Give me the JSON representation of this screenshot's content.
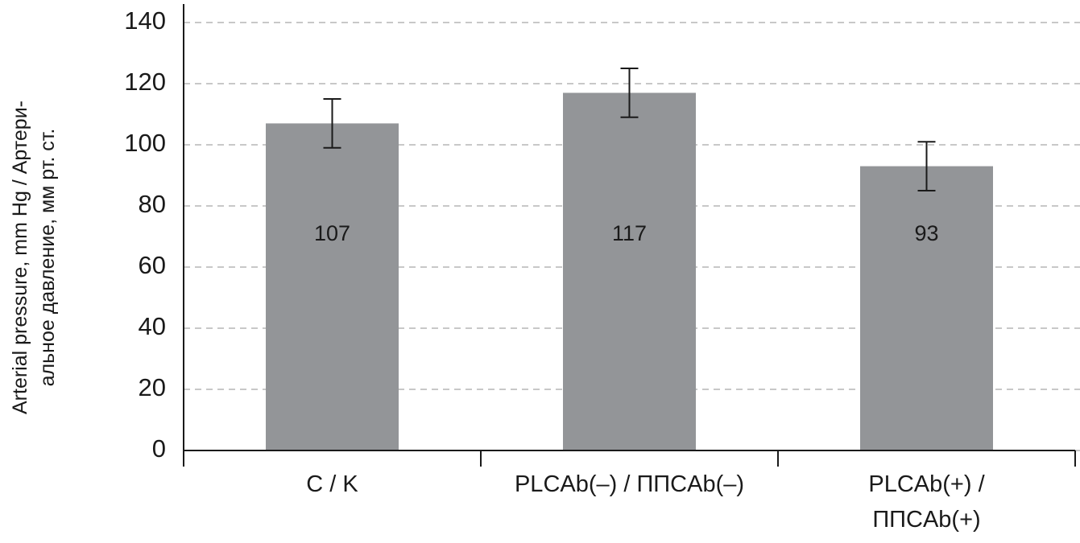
{
  "chart_data": {
    "type": "bar",
    "ylabel": "Arterial pressure, mm Hg /  Артери-\nальное давление, мм рт. ст.",
    "categories": [
      "C  /  K",
      "PLCAb(–)  /    ППСAb(–)",
      "PLCAb(+)    /\nППСAb(+)"
    ],
    "values": [
      107,
      117,
      93
    ],
    "errors": [
      8,
      8,
      8
    ],
    "color": "#939598",
    "ylim": [
      0,
      140
    ],
    "yticks": [
      0,
      20,
      40,
      60,
      80,
      100,
      120,
      140
    ],
    "grid": true
  }
}
